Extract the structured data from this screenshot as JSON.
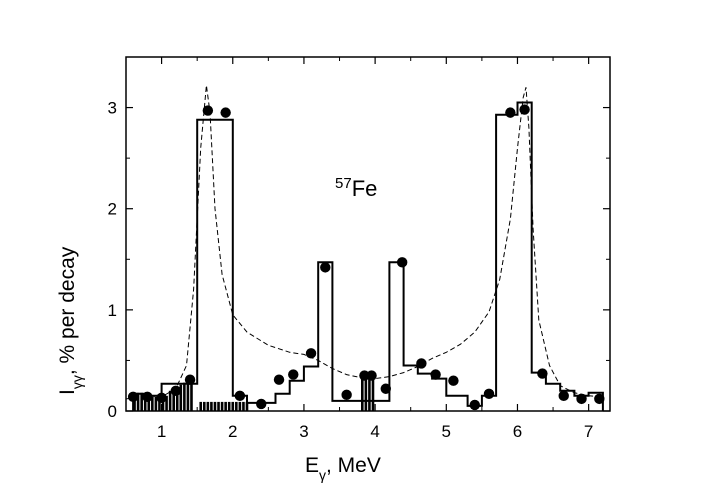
{
  "chart_data": {
    "type": "line",
    "title": "",
    "annotation": {
      "sup": "57",
      "text": "Fe"
    },
    "xlabel": {
      "main": "E",
      "sub": "γ",
      "rest": ", MeV"
    },
    "ylabel": {
      "main": "I",
      "sub": "γγ",
      "rest": ", % per decay"
    },
    "xlim": [
      0.5,
      7.3
    ],
    "ylim": [
      0,
      3.5
    ],
    "xticks": [
      1,
      2,
      3,
      4,
      5,
      6,
      7
    ],
    "yticks": [
      0,
      1,
      2,
      3
    ],
    "series": [
      {
        "kind": "points",
        "x": [
          0.6,
          0.8,
          1.0,
          1.2,
          1.4,
          1.65,
          1.9,
          2.1,
          2.4,
          2.65,
          2.85,
          3.1,
          3.3,
          3.6,
          3.85,
          3.95,
          4.15,
          4.38,
          4.65,
          4.85,
          5.1,
          5.4,
          5.6,
          5.9,
          6.1,
          6.35,
          6.65,
          6.9,
          7.15
        ],
        "y": [
          0.14,
          0.14,
          0.13,
          0.2,
          0.31,
          2.97,
          2.95,
          0.15,
          0.07,
          0.31,
          0.36,
          0.57,
          1.42,
          0.16,
          0.35,
          0.35,
          0.22,
          1.47,
          0.47,
          0.36,
          0.3,
          0.06,
          0.17,
          2.95,
          2.98,
          0.37,
          0.15,
          0.12,
          0.12
        ]
      },
      {
        "kind": "step",
        "x": [
          0.6,
          0.6,
          0.8,
          0.8,
          1.0,
          1.0,
          1.5,
          1.5,
          2.0,
          2.0,
          2.2,
          2.2,
          2.6,
          2.6,
          2.8,
          2.8,
          3.0,
          3.0,
          3.2,
          3.2,
          3.4,
          3.4,
          4.2,
          4.2,
          4.4,
          4.4,
          4.6,
          4.6,
          4.8,
          4.8,
          5.0,
          5.0,
          5.3,
          5.3,
          5.5,
          5.5,
          5.7,
          5.7,
          6.0,
          6.0,
          6.2,
          6.2,
          6.4,
          6.4,
          6.6,
          6.6,
          6.8,
          6.8,
          7.0,
          7.0,
          7.2,
          7.2
        ],
        "y": [
          0,
          0.17,
          0.17,
          0.15,
          0.15,
          0.27,
          0.27,
          2.88,
          2.88,
          0.15,
          0.15,
          0.08,
          0.08,
          0.17,
          0.17,
          0.3,
          0.3,
          0.44,
          0.44,
          1.47,
          1.47,
          0.1,
          0.1,
          1.47,
          1.47,
          0.45,
          0.45,
          0.37,
          0.37,
          0.32,
          0.32,
          0.15,
          0.15,
          0.05,
          0.05,
          0.15,
          0.15,
          2.93,
          2.93,
          3.05,
          3.05,
          0.38,
          0.38,
          0.27,
          0.27,
          0.2,
          0.2,
          0.15,
          0.15,
          0.18,
          0.18,
          0
        ]
      },
      {
        "kind": "dashed",
        "x": [
          0.5,
          0.8,
          1.0,
          1.2,
          1.35,
          1.45,
          1.55,
          1.63,
          1.68,
          1.75,
          1.85,
          2.0,
          2.2,
          2.5,
          2.8,
          3.0,
          3.2,
          3.4,
          3.6,
          3.8,
          4.0,
          4.2,
          4.4,
          4.6,
          4.8,
          5.0,
          5.2,
          5.4,
          5.6,
          5.75,
          5.9,
          6.0,
          6.08,
          6.12,
          6.16,
          6.22,
          6.3,
          6.45,
          6.6,
          6.8,
          7.0,
          7.2
        ],
        "y": [
          0.12,
          0.15,
          0.14,
          0.22,
          0.45,
          1.2,
          2.6,
          3.22,
          2.95,
          2.0,
          1.35,
          0.95,
          0.78,
          0.65,
          0.58,
          0.56,
          0.5,
          0.42,
          0.36,
          0.33,
          0.32,
          0.34,
          0.38,
          0.44,
          0.52,
          0.58,
          0.66,
          0.78,
          0.98,
          1.3,
          1.9,
          2.6,
          3.1,
          3.2,
          2.8,
          1.8,
          0.9,
          0.45,
          0.25,
          0.18,
          0.15,
          0.14
        ]
      },
      {
        "kind": "bars",
        "x": [
          0.62,
          0.67,
          0.72,
          0.77,
          0.82,
          0.87,
          0.92,
          0.97,
          1.02,
          1.07,
          1.12,
          1.17,
          1.22,
          1.27,
          1.32,
          1.37,
          1.42
        ],
        "y": [
          0.18,
          0.18,
          0.18,
          0.16,
          0.16,
          0.14,
          0.14,
          0.14,
          0.15,
          0.15,
          0.2,
          0.22,
          0.24,
          0.26,
          0.28,
          0.28,
          0.28
        ]
      },
      {
        "kind": "dots",
        "x": [
          1.55,
          1.6,
          1.65,
          1.7,
          1.75,
          1.8,
          1.85,
          1.9,
          1.95,
          2.0,
          2.05,
          2.1,
          2.15,
          2.2
        ],
        "y": [
          0.09,
          0.09,
          0.09,
          0.09,
          0.09,
          0.09,
          0.09,
          0.09,
          0.09,
          0.09,
          0.09,
          0.09,
          0.09,
          0.09
        ]
      },
      {
        "kind": "bars",
        "x": [
          3.82,
          3.87,
          3.92,
          3.97
        ],
        "y": [
          0.36,
          0.36,
          0.36,
          0.36
        ]
      }
    ]
  }
}
